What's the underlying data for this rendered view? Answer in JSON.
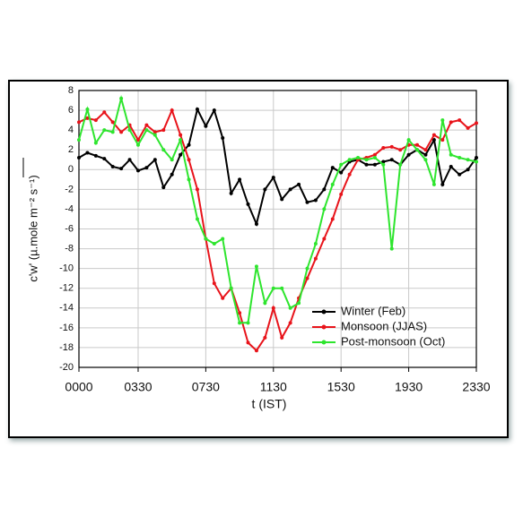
{
  "chart_data": {
    "type": "line",
    "xlabel": "t (IST)",
    "ylabel": "c'w' (µ.mole m⁻² s⁻¹)",
    "x": [
      0,
      0.5,
      1,
      1.5,
      2,
      2.5,
      3,
      3.5,
      4,
      4.5,
      5,
      5.5,
      6,
      6.5,
      7,
      7.5,
      8,
      8.5,
      9,
      9.5,
      10,
      10.5,
      11,
      11.5,
      12,
      12.5,
      13,
      13.5,
      14,
      14.5,
      15,
      15.5,
      16,
      16.5,
      17,
      17.5,
      18,
      18.5,
      19,
      19.5,
      20,
      20.5,
      21,
      21.5,
      22,
      22.5,
      23,
      23.5
    ],
    "xlim": [
      0,
      23.5
    ],
    "xticks": [
      {
        "value": 0,
        "label": "0000"
      },
      {
        "value": 3.5,
        "label": "0330"
      },
      {
        "value": 7.5,
        "label": "0730"
      },
      {
        "value": 11.5,
        "label": "1130"
      },
      {
        "value": 15.5,
        "label": "1530"
      },
      {
        "value": 19.5,
        "label": "1930"
      },
      {
        "value": 23.5,
        "label": "2330"
      }
    ],
    "ylim": [
      -20,
      8
    ],
    "yticks": [
      -20,
      -18,
      -16,
      -14,
      -12,
      -10,
      -8,
      -6,
      -4,
      -2,
      0,
      2,
      4,
      6,
      8
    ],
    "grid": true,
    "legend": "lower right",
    "series": [
      {
        "name": "Winter (Feb)",
        "color": "#000000",
        "values": [
          1.2,
          1.7,
          1.4,
          1.1,
          0.3,
          0.1,
          1.0,
          -0.1,
          0.2,
          1.0,
          -1.8,
          -0.5,
          1.5,
          2.5,
          6.1,
          4.4,
          6.0,
          3.2,
          -2.4,
          -1.0,
          -3.5,
          -5.5,
          -2.0,
          -0.8,
          -3.0,
          -2.0,
          -1.5,
          -3.3,
          -3.1,
          -2.0,
          0.2,
          -0.3,
          0.8,
          1.0,
          0.5,
          0.5,
          0.8,
          1.0,
          0.5,
          1.5,
          2.0,
          1.5,
          3.0,
          -1.5,
          0.3,
          -0.5,
          0.0,
          1.2
        ]
      },
      {
        "name": "Monsoon (JJAS)",
        "color": "#e8141b",
        "values": [
          4.8,
          5.2,
          5.0,
          5.8,
          4.8,
          3.8,
          4.5,
          3.0,
          4.5,
          3.8,
          4.0,
          6.0,
          3.5,
          1.0,
          -2.0,
          -7.0,
          -11.5,
          -13.0,
          -12.0,
          -14.5,
          -17.5,
          -18.3,
          -17.0,
          -14.0,
          -17.0,
          -15.5,
          -13.0,
          -11.0,
          -9.0,
          -7.0,
          -5.0,
          -2.5,
          -0.5,
          1.0,
          1.2,
          1.5,
          2.2,
          2.3,
          2.0,
          2.5,
          2.5,
          2.0,
          3.5,
          3.0,
          4.8,
          5.0,
          4.2,
          4.7
        ]
      },
      {
        "name": "Post-monsoon (Oct)",
        "color": "#2ee52e",
        "values": [
          3.0,
          6.1,
          2.7,
          4.0,
          3.8,
          7.2,
          4.0,
          2.5,
          4.0,
          3.5,
          2.0,
          1.0,
          3.0,
          -1.0,
          -5.0,
          -7.0,
          -7.5,
          -7.0,
          -12.0,
          -15.5,
          -15.5,
          -9.8,
          -13.5,
          -12.0,
          -12.0,
          -14.0,
          -13.5,
          -10.0,
          -7.5,
          -4.0,
          -1.5,
          0.5,
          1.0,
          1.2,
          1.0,
          1.2,
          0.5,
          -8.0,
          0.5,
          3.0,
          2.0,
          1.0,
          -1.5,
          5.0,
          1.5,
          1.2,
          1.0,
          0.8
        ]
      }
    ]
  }
}
